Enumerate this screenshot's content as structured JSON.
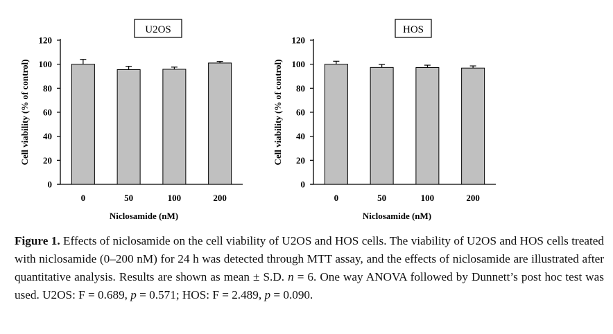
{
  "chart_data": [
    {
      "type": "bar",
      "title": "U2OS",
      "xlabel": "Niclosamide (nM)",
      "ylabel": "Cell viability (% of control)",
      "categories": [
        "0",
        "50",
        "100",
        "200"
      ],
      "values": [
        100.0,
        95.5,
        95.8,
        101.0
      ],
      "errors": [
        4.0,
        2.8,
        1.8,
        1.3
      ],
      "ylim": [
        0,
        120
      ],
      "yticks": [
        "0",
        "20",
        "40",
        "60",
        "80",
        "100",
        "120"
      ],
      "grid": false
    },
    {
      "type": "bar",
      "title": "HOS",
      "xlabel": "Niclosamide (nM)",
      "ylabel": "Cell viability (% of control)",
      "categories": [
        "0",
        "50",
        "100",
        "200"
      ],
      "values": [
        100.0,
        97.3,
        97.2,
        96.8
      ],
      "errors": [
        2.5,
        2.5,
        2.0,
        1.8
      ],
      "ylim": [
        0,
        120
      ],
      "yticks": [
        "0",
        "20",
        "40",
        "60",
        "80",
        "100",
        "120"
      ],
      "grid": false
    }
  ],
  "colors": {
    "bar_fill": "#c0c0c0",
    "bar_edge": "#000000"
  },
  "caption": {
    "label": "Figure 1.",
    "s1": " Effects of niclosamide on the cell viability of U2OS and HOS cells. The viability of U2OS and HOS cells treated with niclosamide (0–200 nM) for 24 h was detected through MTT assay, and the effects of niclosamide are illustrated after quantitative analysis. Results are shown as mean ± S.D. ",
    "n_var": "n",
    "s2": " = 6. One way ANOVA followed by Dunnett’s post hoc test was used. U2OS: F = 0.689, ",
    "p_var1": "p",
    "s3": " = 0.571; HOS: F = 2.489, ",
    "p_var2": "p",
    "s4": " = 0.090."
  }
}
